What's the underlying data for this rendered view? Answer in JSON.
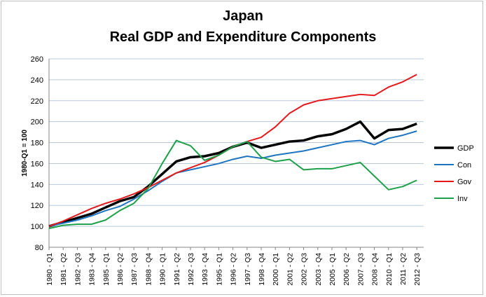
{
  "chart_data": {
    "type": "line",
    "title": [
      "Japan",
      "Real GDP and Expenditure Components"
    ],
    "ylabel": "1980-Q1 = 100",
    "xlabel": "",
    "ylim": [
      80,
      260
    ],
    "yticks": [
      80,
      100,
      120,
      140,
      160,
      180,
      200,
      220,
      240,
      260
    ],
    "grid": true,
    "legend": "right",
    "x": [
      "1980 - Q1",
      "1981 - Q2",
      "1982 - Q3",
      "1983 - Q4",
      "1985 - Q1",
      "1986 - Q2",
      "1987 - Q3",
      "1988 - Q4",
      "1990 - Q1",
      "1991 - Q2",
      "1992 - Q3",
      "1993 - Q4",
      "1995 - Q1",
      "1996 - Q2",
      "1997 - Q3",
      "1998 - Q4",
      "2000 - Q1",
      "2001 - Q2",
      "2002 - Q3",
      "2003 - Q4",
      "2005 - Q1",
      "2006 - Q2",
      "2007 - Q3",
      "2008 - Q4",
      "2010 - Q1",
      "2011 - Q2",
      "2012 - Q3"
    ],
    "series": [
      {
        "name": "GDP",
        "color": "#000000",
        "values": [
          100,
          104,
          108,
          112,
          118,
          124,
          128,
          138,
          150,
          162,
          166,
          167,
          170,
          176,
          180,
          175,
          178,
          181,
          182,
          186,
          188,
          193,
          200,
          184,
          192,
          193,
          198
        ]
      },
      {
        "name": "Con",
        "color": "#1f74c0",
        "values": [
          100,
          103,
          106,
          110,
          115,
          119,
          126,
          134,
          143,
          151,
          154,
          157,
          160,
          164,
          167,
          165,
          168,
          170,
          172,
          175,
          178,
          181,
          182,
          178,
          184,
          187,
          191
        ]
      },
      {
        "name": "Gov",
        "color": "#e3191c",
        "values": [
          100,
          105,
          111,
          117,
          122,
          126,
          131,
          137,
          144,
          151,
          156,
          161,
          168,
          176,
          181,
          185,
          195,
          208,
          216,
          220,
          222,
          224,
          226,
          225,
          233,
          238,
          245
        ]
      },
      {
        "name": "Inv",
        "color": "#1ea04a",
        "values": [
          98,
          101,
          102,
          102,
          106,
          115,
          122,
          136,
          160,
          182,
          177,
          163,
          168,
          176,
          181,
          166,
          162,
          164,
          154,
          155,
          155,
          158,
          161,
          148,
          135,
          138,
          144
        ]
      }
    ]
  }
}
